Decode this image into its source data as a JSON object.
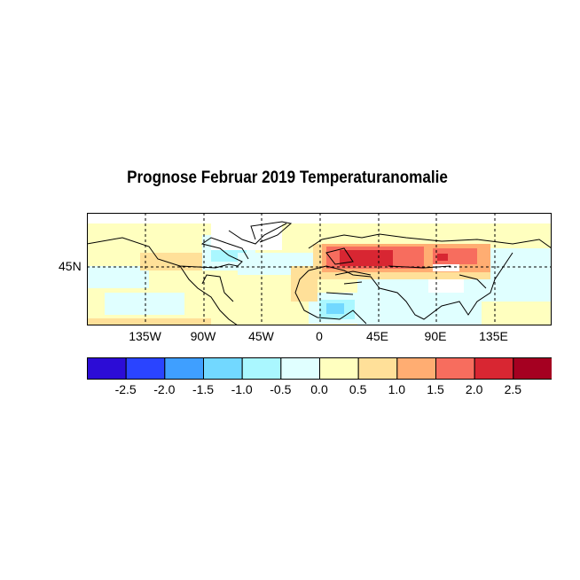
{
  "title": "Prognose Februar 2019 Temperaturanomalie",
  "map": {
    "lon_range": [
      -180,
      180
    ],
    "lat_range": [
      0,
      87.5
    ],
    "lon_ticks": [
      "135W",
      "90W",
      "45W",
      "0",
      "45E",
      "90E",
      "135E"
    ],
    "lon_values": [
      -135,
      -90,
      -45,
      0,
      45,
      90,
      135
    ],
    "lat_ticks": [
      "45N"
    ],
    "lat_values": [
      45
    ],
    "gridlines": "dashed"
  },
  "colorbar": {
    "colors": [
      "#2c0cd6",
      "#2a44ff",
      "#3f9fff",
      "#72d8ff",
      "#aaf7ff",
      "#e0ffff",
      "#ffffbf",
      "#ffe099",
      "#ffad72",
      "#f76d5e",
      "#d82632",
      "#a50021"
    ],
    "labels": [
      "-2.5",
      "-2.0",
      "-1.5",
      "-1.0",
      "-0.5",
      "0.0",
      "0.5",
      "1.0",
      "1.5",
      "2.0",
      "2.5"
    ]
  }
}
